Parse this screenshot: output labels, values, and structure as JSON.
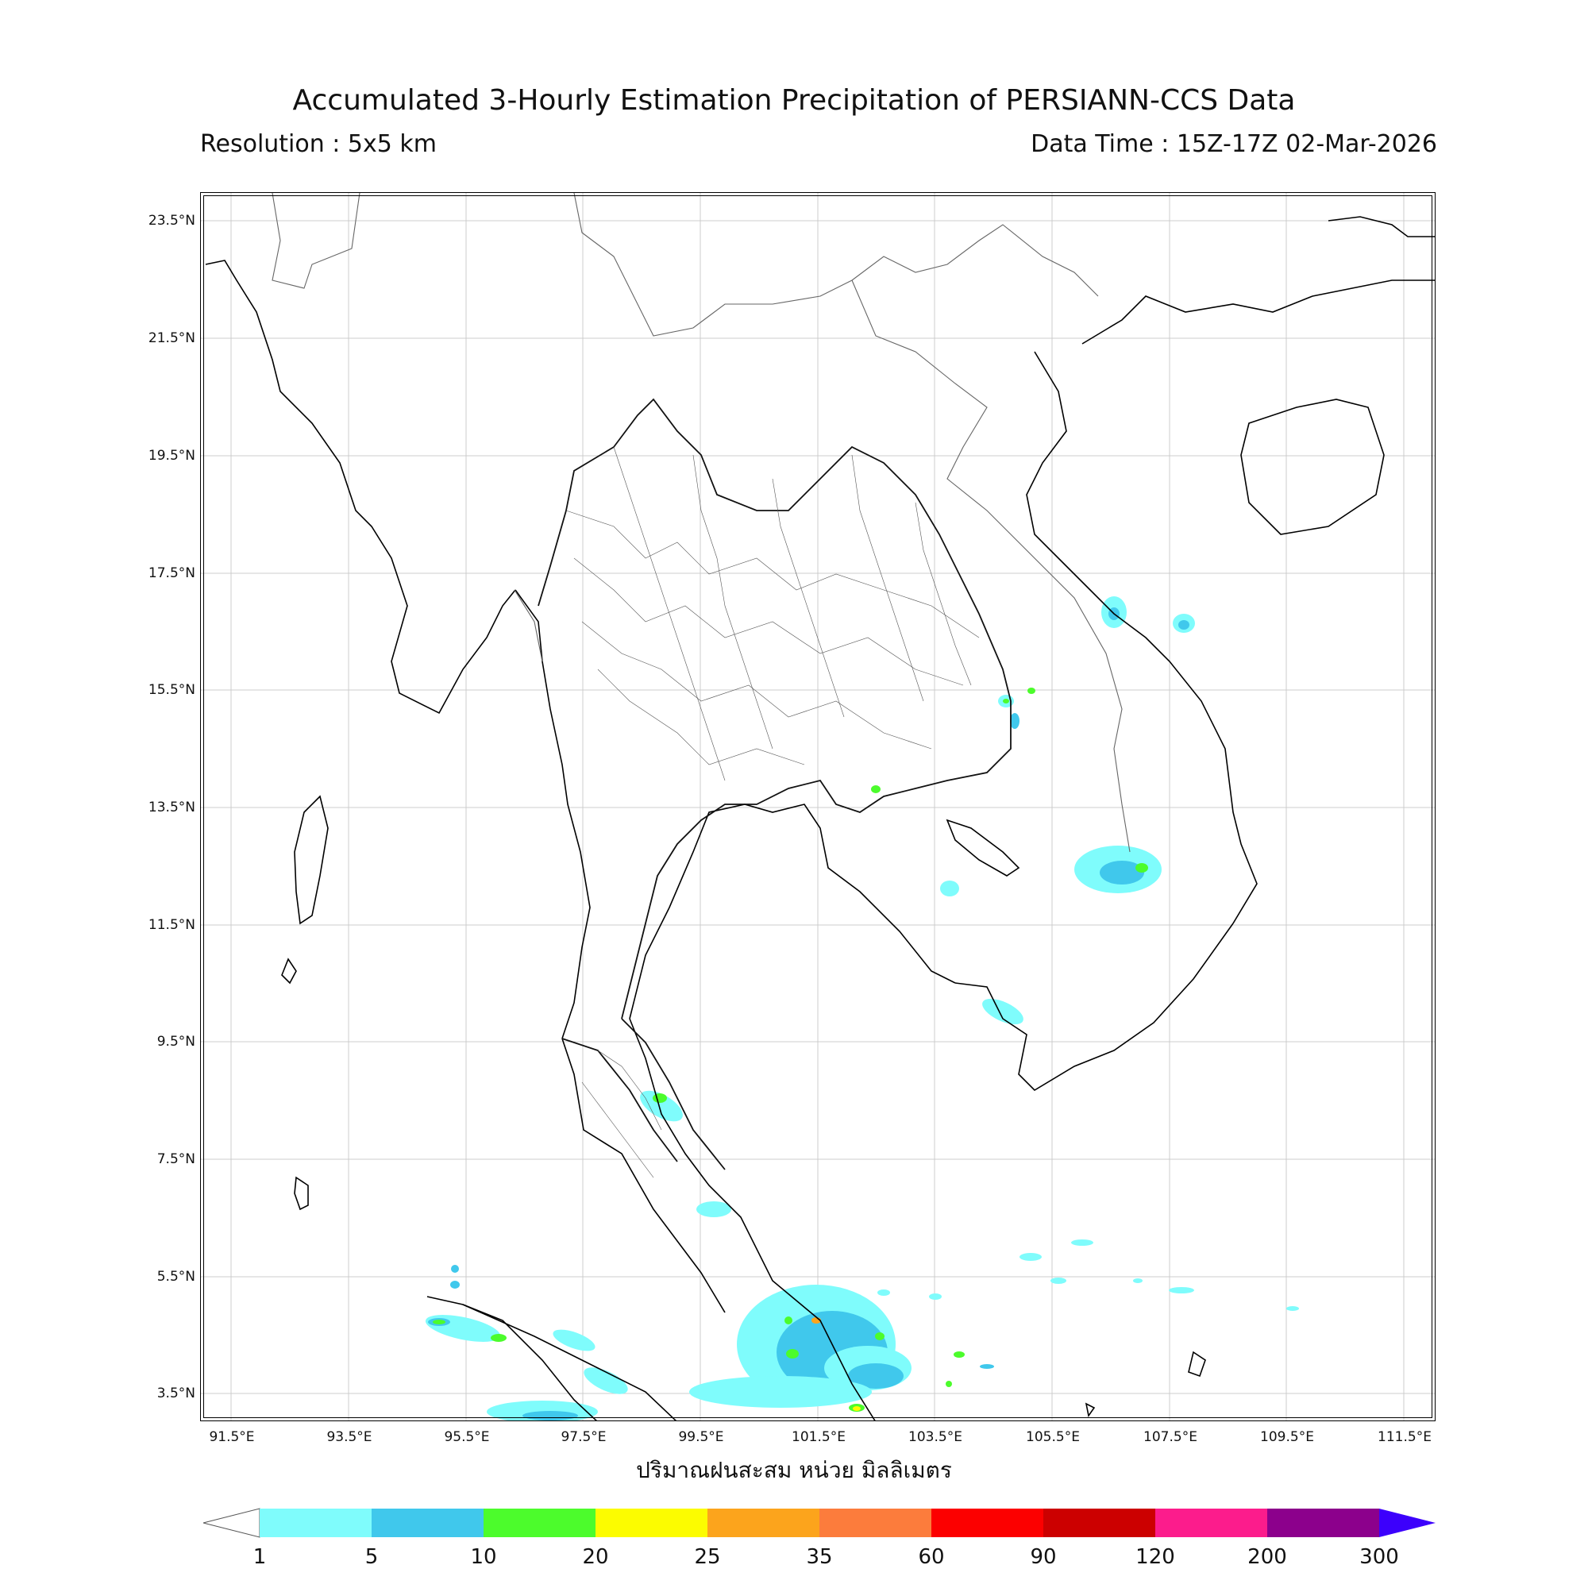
{
  "header": {
    "title": "Accumulated 3-Hourly Estimation Precipitation of PERSIANN-CCS Data",
    "resolution": "Resolution : 5x5 km",
    "data_time": "Data Time : 15Z-17Z 02-Mar-2026"
  },
  "map": {
    "lon_range": [
      91.0,
      112.0
    ],
    "lat_range": [
      2.9,
      24.0
    ],
    "lat_ticks": [
      "23.5°N",
      "21.5°N",
      "19.5°N",
      "17.5°N",
      "15.5°N",
      "13.5°N",
      "11.5°N",
      "9.5°N",
      "7.5°N",
      "5.5°N",
      "3.5°N"
    ],
    "lon_ticks": [
      "91.5°E",
      "93.5°E",
      "95.5°E",
      "97.5°E",
      "99.5°E",
      "101.5°E",
      "103.5°E",
      "105.5°E",
      "107.5°E",
      "109.5°E",
      "111.5°E"
    ],
    "xlabel": "ปริมาณฝนสะสม หน่วย มิลลิเมตร",
    "grid": true
  },
  "colorbar": {
    "levels": [
      "1",
      "5",
      "10",
      "20",
      "25",
      "35",
      "60",
      "90",
      "120",
      "200",
      "300"
    ],
    "colors": [
      "#7ffcfc",
      "#40c8ec",
      "#4cfc2c",
      "#fcfc00",
      "#fca41c",
      "#fc7c3c",
      "#fc0000",
      "#cc0000",
      "#fc1c8c",
      "#8c008c",
      "#3c00fc"
    ],
    "under_color": "#ffffff"
  }
}
